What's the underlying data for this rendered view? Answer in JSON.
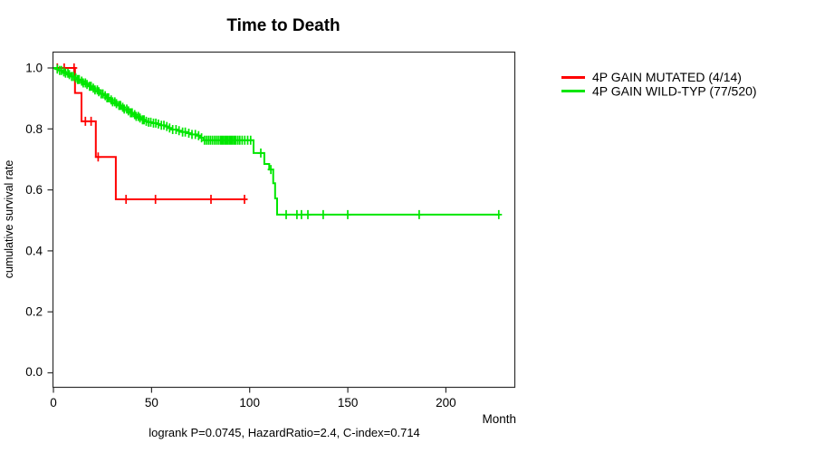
{
  "title": "Time to Death",
  "caption": "logrank P=0.0745, HazardRatio=2.4, C-index=0.714",
  "axes": {
    "x": {
      "label": "Month",
      "tick_labels": [
        "0",
        "50",
        "100",
        "150",
        "200"
      ]
    },
    "y": {
      "label": "cumulative survival rate",
      "tick_labels": [
        "1.0",
        "0.8",
        "0.6",
        "0.4",
        "0.2",
        "0.0"
      ]
    }
  },
  "chart_data": {
    "type": "line",
    "subtype": "kaplan-meier-step",
    "title": "Time to Death",
    "xlabel": "Month",
    "ylabel": "cumulative survival rate",
    "xlim": [
      0,
      235
    ],
    "ylim": [
      0.0,
      1.0
    ],
    "x_ticks": [
      0,
      50,
      100,
      150,
      200
    ],
    "y_ticks": [
      1.0,
      0.8,
      0.6,
      0.4,
      0.2,
      0.0
    ],
    "grid": false,
    "legend_position": "right-outside",
    "annotation": "logrank P=0.0745, HazardRatio=2.4, C-index=0.714",
    "series": [
      {
        "id": "mutated",
        "name": "4P GAIN MUTATED (4/14)",
        "color": "#ff0000",
        "steps": [
          [
            0,
            1.0
          ],
          [
            11,
            0.918
          ],
          [
            14.3,
            0.825
          ],
          [
            21.6,
            0.708
          ],
          [
            31.8,
            0.569
          ]
        ],
        "end_month": 97.4,
        "censor_months": [
          2,
          5.5,
          10.5,
          16.3,
          19.2,
          22.8,
          37,
          52,
          80.3,
          97.4
        ]
      },
      {
        "id": "wildtype",
        "name": "4P GAIN WILD-TYP (77/520)",
        "color": "#00e600",
        "steps": [
          [
            0,
            1.0
          ],
          [
            1.5,
            0.996
          ],
          [
            3,
            0.992
          ],
          [
            4.5,
            0.987
          ],
          [
            6,
            0.983
          ],
          [
            7.5,
            0.978
          ],
          [
            9,
            0.972
          ],
          [
            10.5,
            0.967
          ],
          [
            12,
            0.962
          ],
          [
            13.5,
            0.957
          ],
          [
            15,
            0.951
          ],
          [
            16.5,
            0.946
          ],
          [
            18,
            0.94
          ],
          [
            19.5,
            0.934
          ],
          [
            21,
            0.928
          ],
          [
            22.5,
            0.922
          ],
          [
            24,
            0.915
          ],
          [
            25.5,
            0.909
          ],
          [
            27,
            0.902
          ],
          [
            28.5,
            0.895
          ],
          [
            30,
            0.889
          ],
          [
            31.5,
            0.883
          ],
          [
            33,
            0.877
          ],
          [
            34.5,
            0.871
          ],
          [
            36,
            0.865
          ],
          [
            37.5,
            0.859
          ],
          [
            39,
            0.853
          ],
          [
            40.5,
            0.847
          ],
          [
            42,
            0.841
          ],
          [
            43.5,
            0.836
          ],
          [
            45,
            0.83
          ],
          [
            46.5,
            0.825
          ],
          [
            48.5,
            0.822
          ],
          [
            50.5,
            0.819
          ],
          [
            52.5,
            0.816
          ],
          [
            54.5,
            0.812
          ],
          [
            56.5,
            0.808
          ],
          [
            58.5,
            0.803
          ],
          [
            60.5,
            0.798
          ],
          [
            63,
            0.794
          ],
          [
            65.5,
            0.79
          ],
          [
            68,
            0.786
          ],
          [
            70.5,
            0.782
          ],
          [
            73,
            0.778
          ],
          [
            74.8,
            0.771
          ],
          [
            76.6,
            0.763
          ],
          [
            102,
            0.721
          ],
          [
            107.5,
            0.685
          ],
          [
            110,
            0.667
          ],
          [
            112,
            0.622
          ],
          [
            113,
            0.572
          ],
          [
            114,
            0.519
          ]
        ],
        "end_month": 227,
        "censor_months": [
          2,
          3.2,
          4.1,
          5.3,
          6.2,
          7.4,
          8.1,
          9.3,
          10.2,
          11.4,
          12.3,
          13.1,
          14.4,
          15.2,
          16.3,
          17.1,
          18.4,
          19.2,
          20.3,
          21.2,
          22.4,
          23.1,
          24.3,
          25.2,
          26.4,
          27.3,
          28.1,
          29.4,
          30.2,
          31.3,
          32.1,
          33.4,
          34.2,
          35.3,
          36.1,
          37.4,
          38.2,
          39.3,
          40.1,
          41.4,
          42.2,
          43.3,
          44.1,
          45.4,
          46.2,
          47.3,
          48.5,
          49.6,
          51,
          52.2,
          53.5,
          55,
          56.3,
          57.8,
          59.2,
          60.8,
          62.5,
          64,
          65.8,
          67.2,
          69,
          70.6,
          72.3,
          74,
          75.5,
          77,
          78,
          79,
          80,
          81,
          82,
          83,
          84,
          85,
          85.8,
          86.6,
          87.4,
          88.2,
          89,
          89.8,
          90.6,
          91.4,
          92.2,
          93,
          94,
          95,
          96.2,
          97.5,
          99,
          100.5,
          105.7,
          110.8,
          118.6,
          124.1,
          126.4,
          129.7,
          137.5,
          150,
          186.4,
          227
        ]
      }
    ]
  }
}
